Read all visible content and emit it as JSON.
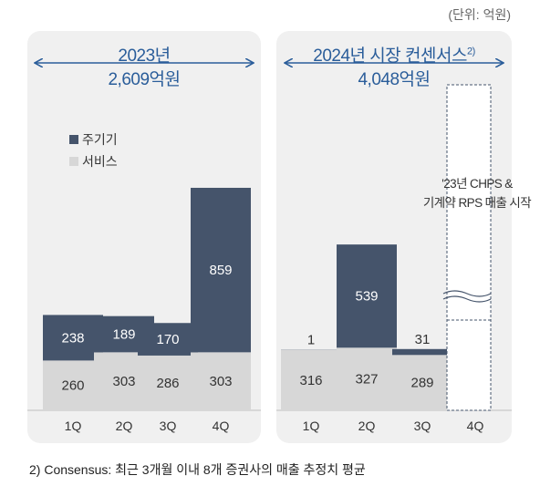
{
  "unit_note": "(단위: 억원)",
  "legend": {
    "top": {
      "label": "주기기",
      "color": "#45546b"
    },
    "bottom": {
      "label": "서비스",
      "color": "#d7d7d7"
    }
  },
  "footnote": "2) Consensus: 최근 3개월 이내 8개 증권사의 매출 추정치 평균",
  "chart_data": [
    {
      "type": "bar",
      "stacked": true,
      "title": "2023년",
      "subtitle": "2,609억원",
      "categories": [
        "1Q",
        "2Q",
        "3Q",
        "4Q"
      ],
      "series": [
        {
          "name": "서비스",
          "values": [
            260,
            303,
            286,
            303
          ],
          "color": "#d7d7d7"
        },
        {
          "name": "주기기",
          "values": [
            238,
            189,
            170,
            859
          ],
          "color": "#45546b"
        }
      ]
    },
    {
      "type": "bar",
      "stacked": true,
      "title": "2024년 시장 컨센서스",
      "title_sup": "2)",
      "subtitle": "4,048억원",
      "categories": [
        "1Q",
        "2Q",
        "3Q",
        "4Q"
      ],
      "series": [
        {
          "name": "서비스",
          "values": [
            316,
            327,
            289,
            null
          ],
          "color": "#d7d7d7"
        },
        {
          "name": "주기기",
          "values": [
            1,
            539,
            31,
            null
          ],
          "color": "#45546b"
        }
      ],
      "annotation_lines": [
        "'23년 CHPS &",
        "기계약 RPS 매출 시작"
      ]
    }
  ]
}
